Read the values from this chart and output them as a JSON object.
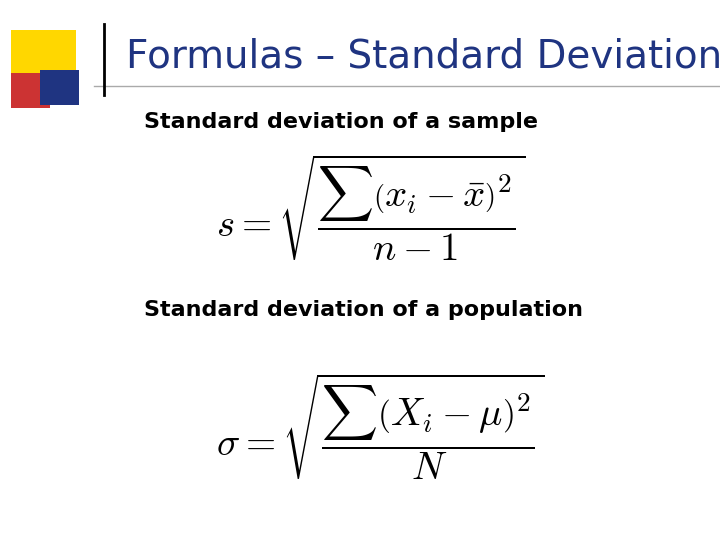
{
  "title": "Formulas – Standard Deviation",
  "title_color": "#1F3481",
  "title_fontsize": 28,
  "subtitle1": "Standard deviation of a sample",
  "subtitle2": "Standard deviation of a population",
  "formula_fontsize": 28,
  "subtitle_fontsize": 16,
  "bg_color": "#ffffff",
  "subtitle_color": "#000000",
  "formula_color": "#000000",
  "deco_yellow": "#FFD700",
  "deco_red": "#CC3333",
  "deco_blue": "#1F3481"
}
